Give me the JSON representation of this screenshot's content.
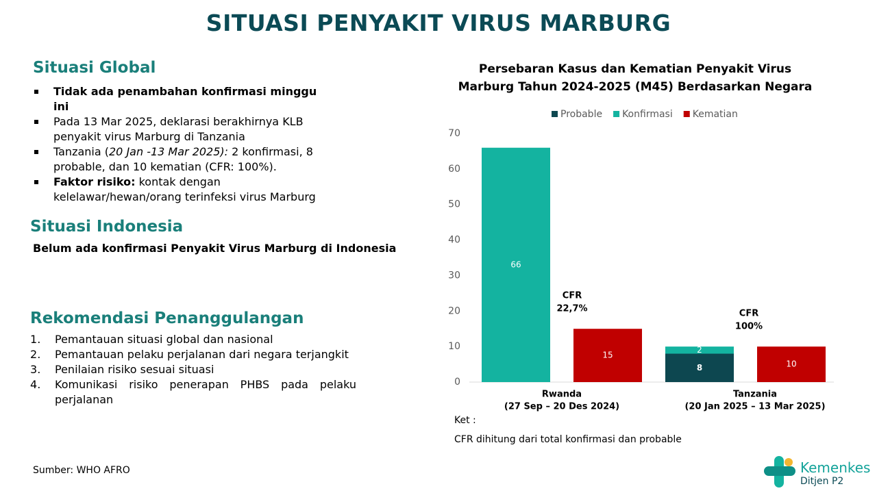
{
  "title": "SITUASI PENYAKIT VIRUS MARBURG",
  "global": {
    "heading": "Situasi Global",
    "items": [
      [
        "Tidak ada penambahan konfirmasi minggu ini"
      ],
      [
        "Pada 13 Mar 2025, deklarasi berakhirnya KLB penyakit virus Marburg di Tanzania"
      ],
      [
        "Tanzania (",
        "20 Jan -13 Mar 2025):",
        " 2 konfirmasi, 8 probable, dan 10 kematian (CFR: 100%)."
      ],
      [
        "Faktor risiko:",
        " kontak dengan kelelawar/hewan/orang terinfeksi virus Marburg"
      ]
    ]
  },
  "indonesia": {
    "heading": "Situasi Indonesia",
    "text": "Belum ada konfirmasi Penyakit Virus Marburg di Indonesia"
  },
  "recommendation": {
    "heading": "Rekomendasi Penanggulangan",
    "items": [
      "Pemantauan situasi global dan nasional",
      "Pemantauan pelaku perjalanan dari negara terjangkit",
      "Penilaian risiko sesuai situasi",
      "Komunikasi risiko penerapan PHBS pada pelaku perjalanan"
    ]
  },
  "source": "Sumber: WHO AFRO",
  "logo": {
    "name": "Kemenkes",
    "unit": "Ditjen P2"
  },
  "chart_data": {
    "type": "bar",
    "title": [
      "Persebaran Kasus dan Kematian Penyakit Virus",
      "Marburg Tahun 2024-2025 (M45) Berdasarkan Negara"
    ],
    "categories": [
      "Rwanda",
      "Tanzania"
    ],
    "category_periods": [
      "(27 Sep – 20 Des 2024)",
      "(20 Jan 2025  – 13 Mar 2025)"
    ],
    "series": [
      {
        "name": "Probable",
        "color": "#0d4750",
        "stacked": true,
        "values": [
          null,
          8
        ]
      },
      {
        "name": "Konfirmasi",
        "color": "#14b3a0",
        "stacked": true,
        "values": [
          66,
          2
        ]
      },
      {
        "name": "Kematian",
        "color": "#c00000",
        "stacked": false,
        "values": [
          15,
          10
        ]
      }
    ],
    "annotations": [
      [
        "CFR",
        "22,7%"
      ],
      [
        "CFR",
        "100%"
      ]
    ],
    "ylim": [
      0,
      70
    ],
    "yticks": [
      0,
      10,
      20,
      30,
      40,
      50,
      60,
      70
    ],
    "grid": false,
    "legend": "top",
    "note_heading": "Ket :",
    "note": "CFR dihitung dari total konfirmasi dan probable"
  }
}
